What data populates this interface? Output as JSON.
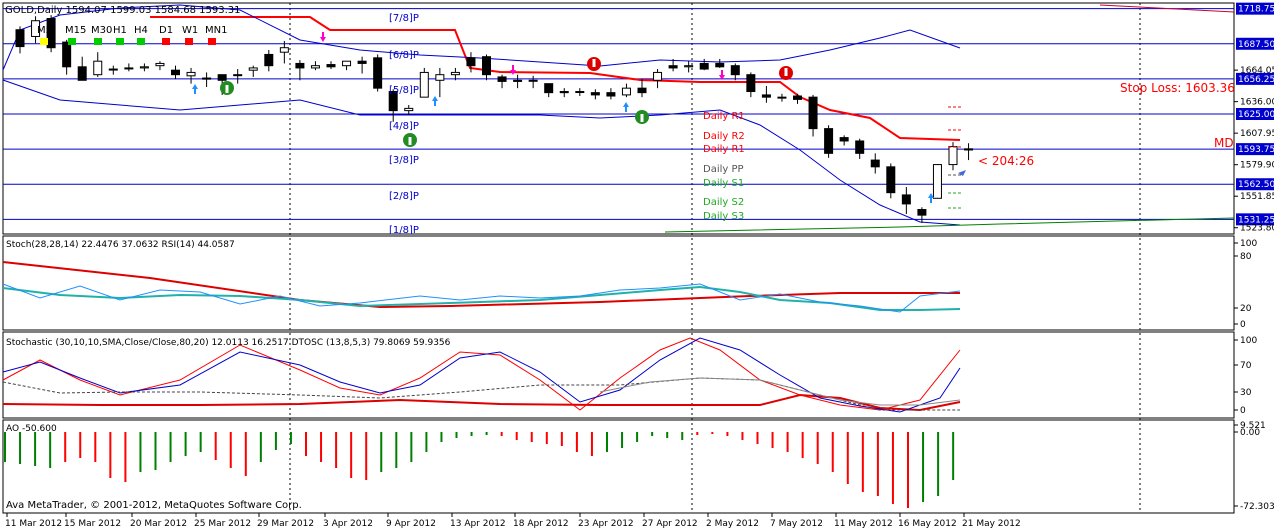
{
  "header": {
    "symbol_line": "GOLD,Daily  1594.07 1599.03 1584.68 1593.31",
    "timeframes": [
      "M5",
      "M15",
      "M30",
      "H1",
      "H4",
      "D1",
      "W1",
      "MN1"
    ],
    "timeframe_colors": [
      "#ffff00",
      "#00cc00",
      "#00cc00",
      "#00cc00",
      "#00cc00",
      "#ff0000",
      "#ff0000",
      "#ff0000"
    ]
  },
  "murrey_labels": [
    "[7/8]P",
    "[6/8]P",
    "[5/8]P",
    "[4/8]P",
    "[3/8]P",
    "[2/8]P",
    "[1/8]P"
  ],
  "pivot_labels": {
    "r1": "Daily R1",
    "r2": "Daily R2",
    "r1b": "Daily R1",
    "pp": "Daily PP",
    "s1": "Daily S1",
    "s2": "Daily S2",
    "s3": "Daily S3"
  },
  "stop_loss": "Stop Loss: 1603.36",
  "md_label": "MD",
  "countdown": "< 204:26",
  "price_axis": {
    "labels": [
      "1718.75",
      "1687.50",
      "1664.05",
      "1656.25",
      "1636.00",
      "1625.00",
      "1607.95",
      "1593.75",
      "1579.90",
      "1562.50",
      "1551.85",
      "1531.25",
      "1523.80"
    ],
    "boxed": [
      "1718.75",
      "1687.50",
      "1656.25",
      "1625.00",
      "1593.75",
      "1562.50",
      "1531.25"
    ]
  },
  "stoch_panel": {
    "title": "Stoch(28,28,14) 22.4476 37.0632  RSI(14) 44.0587",
    "axis": [
      "100",
      "80",
      "20",
      "0"
    ]
  },
  "stochastic_panel": {
    "title": "Stochastic (30,10,10,SMA,Close/Close,80,20) 12.0113 16.2517  DTOSC (13,8,5,3) 79.8069 59.9356",
    "axis": [
      "100",
      "70",
      "30",
      "0"
    ]
  },
  "ao_panel": {
    "title": "AO -50.600",
    "axis": [
      "9.521",
      "0.00",
      "-72.303"
    ]
  },
  "copyright": "Ava MetaTrader, © 2001-2012, MetaQuotes Software Corp.",
  "dates": [
    "11 Mar 2012",
    "15 Mar 2012",
    "20 Mar 2012",
    "25 Mar 2012",
    "29 Mar 2012",
    "3 Apr 2012",
    "9 Apr 2012",
    "13 Apr 2012",
    "18 Apr 2012",
    "23 Apr 2012",
    "27 Apr 2012",
    "2 May 2012",
    "7 May 2012",
    "11 May 2012",
    "16 May 2012",
    "21 May 2012"
  ],
  "colors": {
    "ma_red": "#ff0000",
    "band_blue": "#0000cc",
    "bull_ao": "#008000",
    "bear_ao": "#ff0000",
    "teal": "#20b2aa"
  },
  "chart_data": {
    "type": "candlestick",
    "series": [
      {
        "name": "candles",
        "values": [
          [
            1700,
            1703,
            1679,
            1685
          ],
          [
            1694,
            1712,
            1688,
            1708
          ],
          [
            1710,
            1713,
            1680,
            1684
          ],
          [
            1689,
            1691,
            1660,
            1667
          ],
          [
            1667,
            1676,
            1655,
            1655
          ],
          [
            1660,
            1680,
            1658,
            1672
          ],
          [
            1665,
            1668,
            1660,
            1665
          ],
          [
            1666,
            1670,
            1663,
            1666
          ],
          [
            1666,
            1670,
            1663,
            1667
          ],
          [
            1668,
            1672,
            1664,
            1670
          ],
          [
            1664,
            1668,
            1656,
            1660
          ],
          [
            1659,
            1666,
            1652,
            1662
          ],
          [
            1657,
            1662,
            1649,
            1656
          ],
          [
            1660,
            1660,
            1642,
            1655
          ],
          [
            1660,
            1665,
            1652,
            1660
          ],
          [
            1664,
            1668,
            1658,
            1666
          ],
          [
            1678,
            1682,
            1663,
            1668
          ],
          [
            1680,
            1690,
            1670,
            1684
          ],
          [
            1670,
            1673,
            1655,
            1666
          ],
          [
            1666,
            1672,
            1664,
            1668
          ],
          [
            1669,
            1672,
            1665,
            1667
          ],
          [
            1668,
            1670,
            1664,
            1672
          ],
          [
            1672,
            1676,
            1661,
            1670
          ],
          [
            1675,
            1678,
            1645,
            1648
          ],
          [
            1645,
            1647,
            1618,
            1628
          ],
          [
            1628,
            1633,
            1624,
            1630
          ],
          [
            1640,
            1666,
            1640,
            1662
          ],
          [
            1655,
            1666,
            1640,
            1660
          ],
          [
            1660,
            1666,
            1655,
            1662
          ],
          [
            1675,
            1680,
            1662,
            1668
          ],
          [
            1676,
            1678,
            1655,
            1660
          ],
          [
            1658,
            1660,
            1648,
            1654
          ],
          [
            1655,
            1660,
            1648,
            1654
          ],
          [
            1655,
            1659,
            1648,
            1655
          ],
          [
            1652,
            1652,
            1640,
            1644
          ],
          [
            1645,
            1648,
            1640,
            1644
          ],
          [
            1645,
            1648,
            1641,
            1645
          ],
          [
            1644,
            1647,
            1638,
            1642
          ],
          [
            1644,
            1648,
            1638,
            1641
          ],
          [
            1642,
            1652,
            1640,
            1648
          ],
          [
            1648,
            1656,
            1640,
            1644
          ],
          [
            1655,
            1665,
            1648,
            1662
          ],
          [
            1668,
            1674,
            1663,
            1666
          ],
          [
            1667,
            1672,
            1662,
            1668
          ],
          [
            1670,
            1674,
            1664,
            1665
          ],
          [
            1670,
            1674,
            1666,
            1667
          ],
          [
            1668,
            1670,
            1655,
            1660
          ],
          [
            1660,
            1662,
            1640,
            1645
          ],
          [
            1642,
            1650,
            1635,
            1640
          ],
          [
            1640,
            1643,
            1636,
            1640
          ],
          [
            1641,
            1643,
            1634,
            1638
          ],
          [
            1640,
            1642,
            1605,
            1612
          ],
          [
            1612,
            1615,
            1586,
            1590
          ],
          [
            1604,
            1606,
            1597,
            1601
          ],
          [
            1601,
            1603,
            1585,
            1590
          ],
          [
            1584,
            1590,
            1572,
            1578
          ],
          [
            1578,
            1581,
            1550,
            1555
          ],
          [
            1553,
            1560,
            1536,
            1545
          ],
          [
            1540,
            1542,
            1528,
            1535
          ],
          [
            1550,
            1580,
            1550,
            1580
          ],
          [
            1580,
            1600,
            1575,
            1596
          ],
          [
            1594,
            1599,
            1584,
            1593
          ]
        ]
      }
    ],
    "ylim": [
      1520,
      1722
    ]
  }
}
